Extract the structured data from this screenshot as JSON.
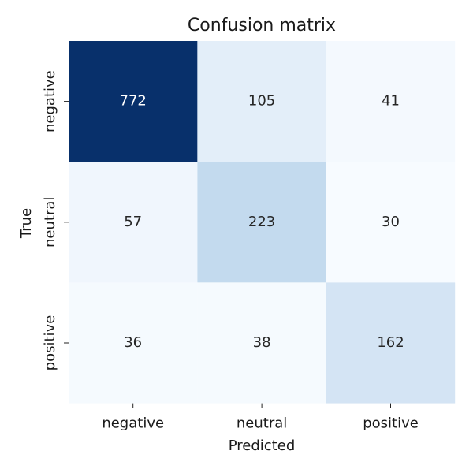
{
  "chart_data": {
    "type": "heatmap",
    "title": "Confusion matrix",
    "xlabel": "Predicted",
    "ylabel": "True",
    "x_categories": [
      "negative",
      "neutral",
      "positive"
    ],
    "y_categories": [
      "negative",
      "neutral",
      "positive"
    ],
    "values": [
      [
        772,
        105,
        41
      ],
      [
        57,
        223,
        30
      ],
      [
        36,
        38,
        162
      ]
    ],
    "colormap": "Blues",
    "colorbar": false
  }
}
